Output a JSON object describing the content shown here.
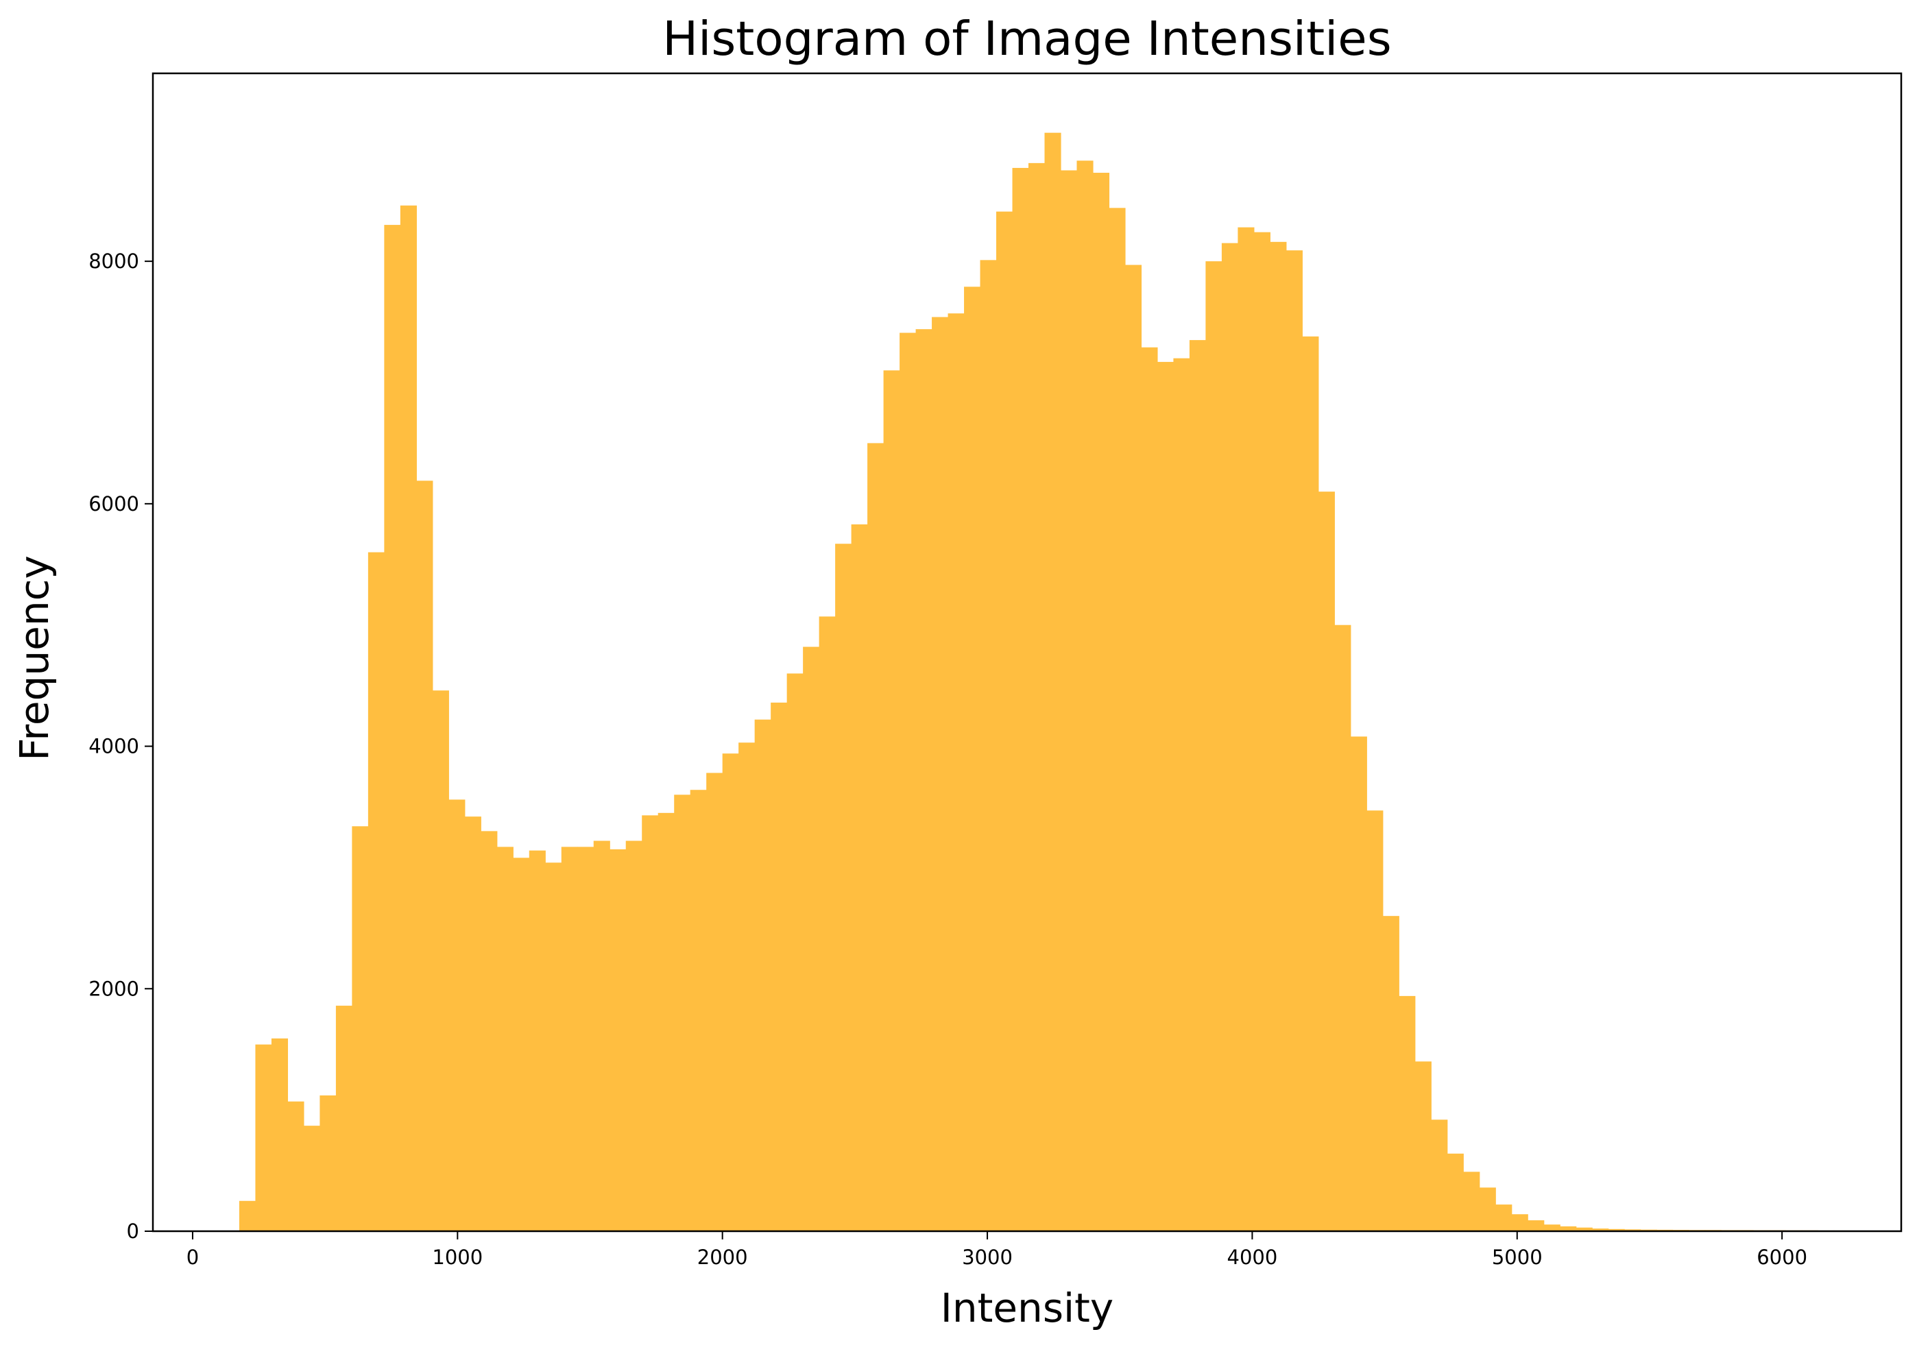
{
  "chart_data": {
    "type": "bar",
    "title": "Histogram of Image Intensities",
    "xlabel": "Intensity",
    "ylabel": "Frequency",
    "xlim": [
      -150,
      6450
    ],
    "ylim": [
      0,
      9550
    ],
    "xticks": [
      0,
      1000,
      2000,
      3000,
      4000,
      5000,
      6000
    ],
    "yticks": [
      0,
      2000,
      4000,
      6000,
      8000
    ],
    "grid": false,
    "bar_color": "#FFBE40",
    "bin_start": 176,
    "bin_width": 60.8,
    "values": [
      250,
      1540,
      1590,
      1070,
      870,
      1120,
      1860,
      3340,
      5600,
      8300,
      8460,
      6190,
      4460,
      3560,
      3420,
      3300,
      3170,
      3080,
      3140,
      3040,
      3170,
      3170,
      3220,
      3150,
      3220,
      3430,
      3450,
      3600,
      3640,
      3780,
      3940,
      4030,
      4220,
      4360,
      4600,
      4820,
      5070,
      5670,
      5830,
      6500,
      7100,
      7410,
      7440,
      7540,
      7570,
      7790,
      8010,
      8410,
      8770,
      8810,
      9060,
      8750,
      8830,
      8730,
      8440,
      7970,
      7290,
      7170,
      7200,
      7350,
      8000,
      8150,
      8280,
      8240,
      8160,
      8090,
      7380,
      6100,
      5000,
      4080,
      3470,
      2600,
      1940,
      1400,
      920,
      640,
      490,
      360,
      220,
      140,
      90,
      55,
      40,
      30,
      22,
      18,
      15,
      13,
      12,
      11,
      10,
      10,
      9,
      9,
      8,
      8,
      7,
      7,
      6,
      6
    ]
  }
}
